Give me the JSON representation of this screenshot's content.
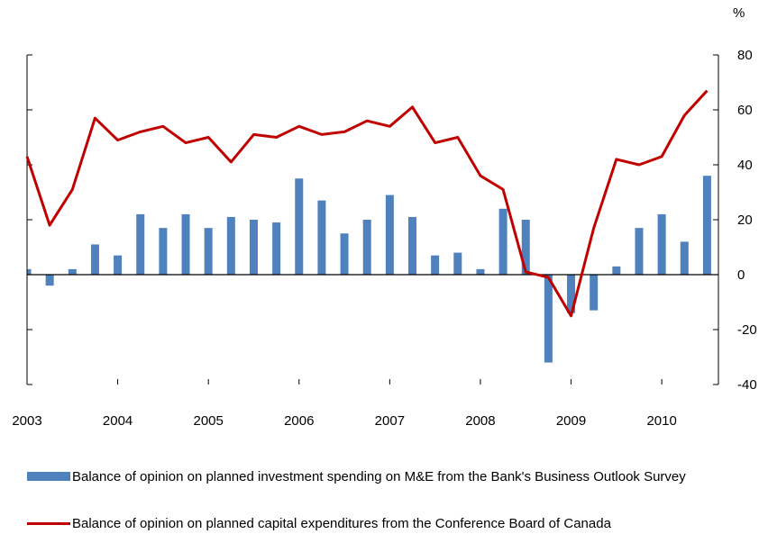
{
  "chart_data": {
    "type": "bar+line",
    "y_unit_label": "%",
    "ylim": [
      -40,
      80
    ],
    "yticks": [
      80,
      60,
      40,
      20,
      0,
      -20,
      -40
    ],
    "x_year_labels": [
      "2003",
      "2004",
      "2005",
      "2006",
      "2007",
      "2008",
      "2009",
      "2010"
    ],
    "x_range": [
      2003.0,
      2010.625
    ],
    "series": [
      {
        "name": "Balance of opinion on planned investment spending on M&E from the Bank's Business Outlook Survey",
        "type": "bar",
        "color": "#4f81bd",
        "x": [
          2003.0,
          2003.25,
          2003.5,
          2003.75,
          2004.0,
          2004.25,
          2004.5,
          2004.75,
          2005.0,
          2005.25,
          2005.5,
          2005.75,
          2006.0,
          2006.25,
          2006.5,
          2006.75,
          2007.0,
          2007.25,
          2007.5,
          2007.75,
          2008.0,
          2008.25,
          2008.5,
          2008.75,
          2009.0,
          2009.25,
          2009.5,
          2009.75,
          2010.0,
          2010.25,
          2010.5
        ],
        "values": [
          2,
          -4,
          2,
          11,
          7,
          22,
          17,
          22,
          17,
          21,
          20,
          19,
          35,
          27,
          15,
          20,
          29,
          21,
          7,
          8,
          2,
          24,
          20,
          -32,
          -14,
          -13,
          3,
          17,
          22,
          12,
          36
        ]
      },
      {
        "name": "Balance of opinion on planned capital expenditures from the Conference Board of Canada",
        "type": "line",
        "color": "#c00000",
        "x": [
          2003.0,
          2003.25,
          2003.5,
          2003.75,
          2004.0,
          2004.25,
          2004.5,
          2004.75,
          2005.0,
          2005.25,
          2005.5,
          2005.75,
          2006.0,
          2006.25,
          2006.5,
          2006.75,
          2007.0,
          2007.25,
          2007.5,
          2007.75,
          2008.0,
          2008.25,
          2008.5,
          2008.75,
          2009.0,
          2009.25,
          2009.5,
          2009.75,
          2010.0,
          2010.25,
          2010.5
        ],
        "values": [
          43,
          18,
          31,
          57,
          49,
          52,
          54,
          48,
          50,
          41,
          51,
          50,
          54,
          51,
          52,
          56,
          54,
          61,
          48,
          50,
          36,
          31,
          1,
          -1,
          -15,
          17,
          42,
          40,
          43,
          58,
          67
        ]
      }
    ],
    "legend_placement": "bottom"
  }
}
